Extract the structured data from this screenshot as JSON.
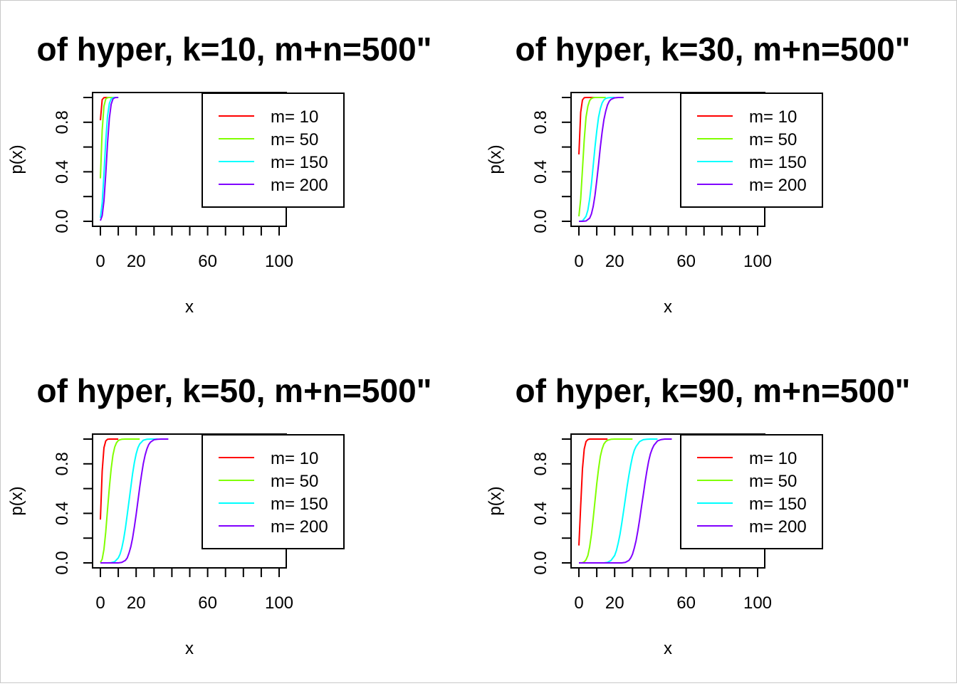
{
  "chart_data": [
    {
      "type": "line",
      "title": "of hyper, k=10, m+n=500\"",
      "xlabel": "x",
      "ylabel": "p(x)",
      "xlim": [
        0,
        100
      ],
      "ylim": [
        0,
        1
      ],
      "xticks": [
        "0",
        "20",
        "60",
        "100"
      ],
      "yticks": [
        "0.0",
        "0.4",
        "0.8"
      ],
      "legend_position": "top-right",
      "grid": false,
      "series": [
        {
          "name": "m= 10",
          "color": "#ff0000",
          "x": [
            0,
            1,
            2,
            3,
            4,
            5,
            6,
            7,
            8,
            9,
            10
          ],
          "values": [
            0.816,
            0.983,
            0.999,
            1.0,
            1.0,
            1.0,
            1.0,
            1.0,
            1.0,
            1.0,
            1.0
          ]
        },
        {
          "name": "m= 50",
          "color": "#80ff00",
          "x": [
            0,
            1,
            2,
            3,
            4,
            5,
            6,
            7,
            8,
            9,
            10
          ],
          "values": [
            0.347,
            0.736,
            0.93,
            0.988,
            0.999,
            1.0,
            1.0,
            1.0,
            1.0,
            1.0,
            1.0
          ]
        },
        {
          "name": "m= 150",
          "color": "#00ffff",
          "x": [
            0,
            1,
            2,
            3,
            4,
            5,
            6,
            7,
            8,
            9,
            10
          ],
          "values": [
            0.028,
            0.148,
            0.384,
            0.65,
            0.85,
            0.952,
            0.989,
            0.998,
            1.0,
            1.0,
            1.0
          ]
        },
        {
          "name": "m= 200",
          "color": "#8000ff",
          "x": [
            0,
            1,
            2,
            3,
            4,
            5,
            6,
            7,
            8,
            9,
            10
          ],
          "values": [
            0.006,
            0.045,
            0.166,
            0.38,
            0.63,
            0.833,
            0.945,
            0.988,
            0.998,
            1.0,
            1.0
          ]
        }
      ]
    },
    {
      "type": "line",
      "title": "of hyper, k=30, m+n=500\"",
      "xlabel": "x",
      "ylabel": "p(x)",
      "xlim": [
        0,
        100
      ],
      "ylim": [
        0,
        1
      ],
      "xticks": [
        "0",
        "20",
        "60",
        "100"
      ],
      "yticks": [
        "0.0",
        "0.4",
        "0.8"
      ],
      "legend_position": "top-right",
      "grid": false,
      "series": [
        {
          "name": "m= 10",
          "color": "#ff0000",
          "x": [
            0,
            1,
            2,
            3,
            4,
            5,
            6,
            7,
            8,
            9,
            10
          ],
          "values": [
            0.54,
            0.88,
            0.98,
            0.998,
            1.0,
            1.0,
            1.0,
            1.0,
            1.0,
            1.0,
            1.0
          ]
        },
        {
          "name": "m= 50",
          "color": "#80ff00",
          "x": [
            0,
            1,
            2,
            3,
            4,
            5,
            6,
            7,
            8,
            9,
            10,
            11,
            12,
            13,
            14,
            15
          ],
          "values": [
            0.04,
            0.18,
            0.42,
            0.66,
            0.84,
            0.93,
            0.975,
            0.992,
            0.998,
            1.0,
            1.0,
            1.0,
            1.0,
            1.0,
            1.0,
            1.0
          ]
        },
        {
          "name": "m= 150",
          "color": "#00ffff",
          "x": [
            0,
            2,
            4,
            5,
            6,
            7,
            8,
            9,
            10,
            11,
            12,
            13,
            14,
            15,
            16,
            18,
            20
          ],
          "values": [
            0.0,
            0.003,
            0.04,
            0.09,
            0.18,
            0.3,
            0.45,
            0.6,
            0.73,
            0.84,
            0.91,
            0.955,
            0.98,
            0.992,
            0.997,
            1.0,
            1.0
          ]
        },
        {
          "name": "m= 200",
          "color": "#8000ff",
          "x": [
            0,
            2,
            4,
            6,
            7,
            8,
            9,
            10,
            11,
            12,
            13,
            14,
            15,
            16,
            17,
            18,
            20,
            22,
            25
          ],
          "values": [
            0.0,
            0.0,
            0.003,
            0.025,
            0.06,
            0.12,
            0.21,
            0.33,
            0.46,
            0.6,
            0.72,
            0.82,
            0.89,
            0.94,
            0.97,
            0.985,
            0.997,
            1.0,
            1.0
          ]
        }
      ]
    },
    {
      "type": "line",
      "title": "of hyper, k=50, m+n=500\"",
      "xlabel": "x",
      "ylabel": "p(x)",
      "xlim": [
        0,
        100
      ],
      "ylim": [
        0,
        1
      ],
      "xticks": [
        "0",
        "20",
        "60",
        "100"
      ],
      "yticks": [
        "0.0",
        "0.4",
        "0.8"
      ],
      "legend_position": "top-right",
      "grid": false,
      "series": [
        {
          "name": "m= 10",
          "color": "#ff0000",
          "x": [
            0,
            1,
            2,
            3,
            4,
            5,
            6,
            8,
            10
          ],
          "values": [
            0.35,
            0.74,
            0.93,
            0.985,
            0.998,
            1.0,
            1.0,
            1.0,
            1.0
          ]
        },
        {
          "name": "m= 50",
          "color": "#80ff00",
          "x": [
            0,
            1,
            2,
            3,
            4,
            5,
            6,
            7,
            8,
            9,
            10,
            11,
            12,
            14,
            16,
            18,
            22
          ],
          "values": [
            0.004,
            0.03,
            0.11,
            0.25,
            0.43,
            0.61,
            0.76,
            0.87,
            0.935,
            0.97,
            0.988,
            0.995,
            0.998,
            1.0,
            1.0,
            1.0,
            1.0
          ]
        },
        {
          "name": "m= 150",
          "color": "#00ffff",
          "x": [
            0,
            4,
            6,
            8,
            10,
            11,
            12,
            13,
            14,
            15,
            16,
            17,
            18,
            19,
            20,
            21,
            22,
            24,
            26,
            28,
            32
          ],
          "values": [
            0.0,
            0.0,
            0.002,
            0.01,
            0.04,
            0.07,
            0.12,
            0.19,
            0.28,
            0.39,
            0.5,
            0.61,
            0.72,
            0.81,
            0.88,
            0.93,
            0.96,
            0.99,
            0.998,
            1.0,
            1.0
          ]
        },
        {
          "name": "m= 200",
          "color": "#8000ff",
          "x": [
            0,
            10,
            12,
            14,
            15,
            16,
            17,
            18,
            19,
            20,
            21,
            22,
            23,
            24,
            25,
            26,
            27,
            28,
            30,
            32,
            34,
            38
          ],
          "values": [
            0.0,
            0.0,
            0.004,
            0.02,
            0.04,
            0.08,
            0.13,
            0.2,
            0.29,
            0.39,
            0.5,
            0.61,
            0.71,
            0.8,
            0.87,
            0.92,
            0.955,
            0.975,
            0.995,
            0.999,
            1.0,
            1.0
          ]
        }
      ]
    },
    {
      "type": "line",
      "title": "of hyper, k=90, m+n=500\"",
      "xlabel": "x",
      "ylabel": "p(x)",
      "xlim": [
        0,
        100
      ],
      "ylim": [
        0,
        1
      ],
      "xticks": [
        "0",
        "20",
        "60",
        "100"
      ],
      "yticks": [
        "0.0",
        "0.4",
        "0.8"
      ],
      "legend_position": "top-right",
      "grid": false,
      "series": [
        {
          "name": "m= 10",
          "color": "#ff0000",
          "x": [
            0,
            1,
            2,
            3,
            4,
            5,
            6,
            7,
            8,
            10,
            16
          ],
          "values": [
            0.14,
            0.46,
            0.76,
            0.92,
            0.98,
            0.996,
            1.0,
            1.0,
            1.0,
            1.0,
            1.0
          ]
        },
        {
          "name": "m= 50",
          "color": "#80ff00",
          "x": [
            0,
            2,
            3,
            4,
            5,
            6,
            7,
            8,
            9,
            10,
            11,
            12,
            13,
            14,
            15,
            16,
            18,
            20,
            24,
            30
          ],
          "values": [
            0.0,
            0.002,
            0.008,
            0.025,
            0.06,
            0.13,
            0.23,
            0.36,
            0.5,
            0.64,
            0.76,
            0.86,
            0.92,
            0.96,
            0.98,
            0.99,
            0.998,
            1.0,
            1.0,
            1.0
          ]
        },
        {
          "name": "m= 150",
          "color": "#00ffff",
          "x": [
            0,
            14,
            16,
            18,
            20,
            21,
            22,
            23,
            24,
            25,
            26,
            27,
            28,
            29,
            30,
            31,
            32,
            34,
            36,
            38,
            40,
            44
          ],
          "values": [
            0.0,
            0.0,
            0.004,
            0.02,
            0.06,
            0.1,
            0.16,
            0.23,
            0.32,
            0.42,
            0.52,
            0.62,
            0.71,
            0.79,
            0.86,
            0.91,
            0.94,
            0.98,
            0.995,
            0.999,
            1.0,
            1.0
          ]
        },
        {
          "name": "m= 200",
          "color": "#8000ff",
          "x": [
            0,
            24,
            26,
            28,
            29,
            30,
            31,
            32,
            33,
            34,
            35,
            36,
            37,
            38,
            39,
            40,
            41,
            42,
            44,
            46,
            48,
            52
          ],
          "values": [
            0.0,
            0.0,
            0.004,
            0.02,
            0.04,
            0.07,
            0.12,
            0.18,
            0.26,
            0.35,
            0.45,
            0.55,
            0.65,
            0.74,
            0.82,
            0.88,
            0.92,
            0.95,
            0.985,
            0.996,
            1.0,
            1.0
          ]
        }
      ]
    }
  ]
}
